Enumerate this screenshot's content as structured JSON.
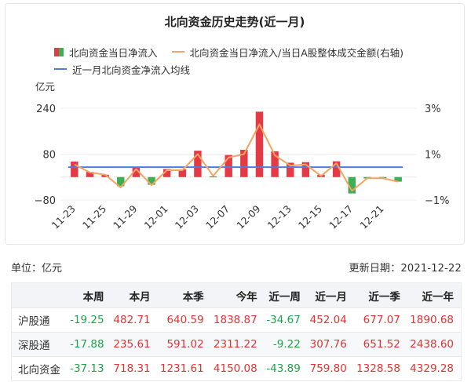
{
  "chart_title": "北向资金历史走势(近一月)",
  "legend": {
    "bar_label": "北向资金当日净流入",
    "ratio_label": "北向资金当日净流入/当日A股整体成交金额(右轴)",
    "avg_label": "近一月北向资金净流入均线"
  },
  "colors": {
    "bar_positive": "#e63946",
    "bar_negative": "#3cae54",
    "ratio_line": "#f4a460",
    "avg_line": "#4a7de2",
    "grid": "#eef0f3"
  },
  "chart_data": {
    "type": "bar",
    "y_unit": "亿元",
    "ylim": [
      -80,
      240
    ],
    "y_ticks": [
      -80,
      80,
      240
    ],
    "y_tick_labels": [
      "−80",
      "80",
      "240"
    ],
    "y2lim": [
      -1,
      3
    ],
    "y2_ticks": [
      -1,
      1,
      3
    ],
    "y2_tick_labels": [
      "−1%",
      "1%",
      "3%"
    ],
    "x_tick_labels": [
      "11-23",
      "11-25",
      "11-29",
      "12-01",
      "12-03",
      "12-07",
      "12-09",
      "12-13",
      "12-15",
      "12-17",
      "12-21"
    ],
    "series": [
      {
        "kind": "bar",
        "values": [
          54,
          18,
          8,
          -32,
          33,
          -27,
          28,
          27,
          92,
          2,
          77,
          95,
          228,
          90,
          50,
          52,
          8,
          55,
          -57,
          -5,
          -5,
          -16
        ]
      },
      {
        "kind": "line",
        "axis": "right",
        "values": [
          0.55,
          0.2,
          0.1,
          -0.45,
          0.35,
          -0.35,
          0.3,
          0.3,
          1.0,
          0.05,
          0.85,
          1.0,
          2.3,
          0.95,
          0.5,
          0.55,
          0.05,
          0.6,
          -0.6,
          -0.05,
          -0.05,
          -0.2
        ]
      },
      {
        "kind": "line",
        "name": "近一月北向资金净流入均线",
        "values_constant": 34.54
      }
    ]
  },
  "unit_label": "单位：亿元",
  "update_label": "更新日期：2021-12-22",
  "table": {
    "headers": [
      "本周",
      "本月",
      "本季",
      "今年",
      "近一周",
      "近一月",
      "近一季",
      "近一年"
    ],
    "rows": [
      {
        "name": "沪股通",
        "values": [
          "-19.25",
          "482.71",
          "640.59",
          "1838.87",
          "-34.67",
          "452.04",
          "677.07",
          "1890.68"
        ]
      },
      {
        "name": "深股通",
        "values": [
          "-17.88",
          "235.61",
          "591.02",
          "2311.22",
          "-9.22",
          "307.76",
          "651.52",
          "2438.60"
        ]
      },
      {
        "name": "北向资金",
        "values": [
          "-37.13",
          "718.31",
          "1231.61",
          "4150.08",
          "-43.89",
          "759.80",
          "1328.58",
          "4329.28"
        ]
      }
    ]
  }
}
